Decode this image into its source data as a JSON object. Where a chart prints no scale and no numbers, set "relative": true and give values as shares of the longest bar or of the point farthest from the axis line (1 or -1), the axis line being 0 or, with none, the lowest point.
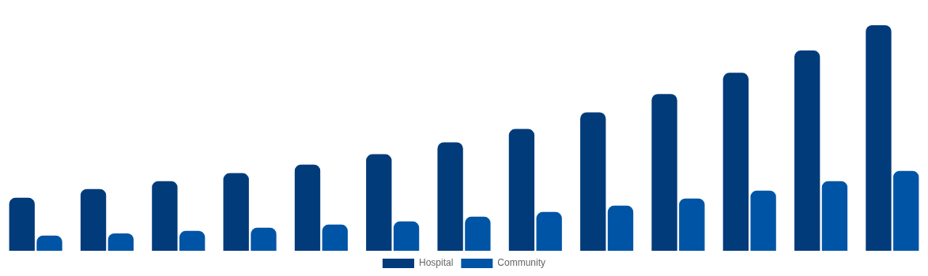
{
  "chart_data": {
    "type": "bar",
    "relative": true,
    "legend": "bottom",
    "grid": false,
    "categories": [
      null,
      null,
      null,
      null,
      null,
      null,
      null,
      null,
      null,
      null,
      null,
      null,
      null
    ],
    "series": [
      {
        "name": "Hospital",
        "color": "#023b7a",
        "values": [
          0.235,
          0.274,
          0.309,
          0.344,
          0.382,
          0.428,
          0.481,
          0.54,
          0.614,
          0.695,
          0.789,
          0.888,
          1
        ]
      },
      {
        "name": "Community",
        "color": "#0054a6",
        "values": [
          0.067,
          0.077,
          0.088,
          0.102,
          0.116,
          0.13,
          0.151,
          0.172,
          0.2,
          0.232,
          0.267,
          0.309,
          0.354
        ]
      }
    ]
  }
}
